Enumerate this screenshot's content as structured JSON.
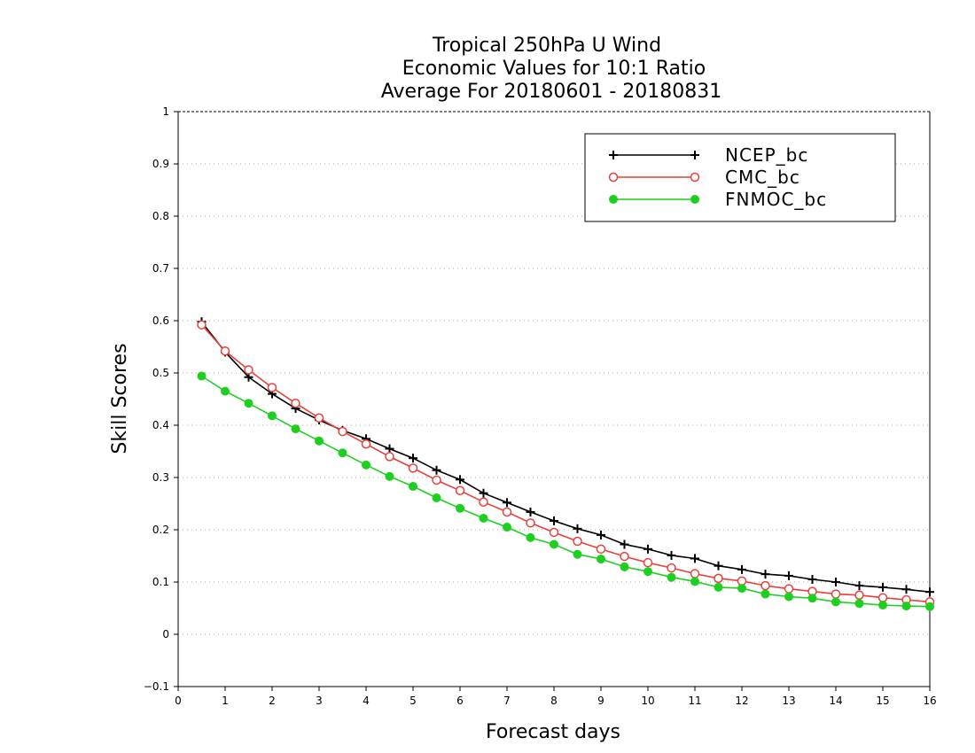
{
  "chart_data": {
    "type": "line",
    "title_lines": [
      "Tropical 250hPa U Wind",
      "Economic Values for 10:1 Ratio",
      "Average For 20180601 - 20180831"
    ],
    "xlabel": "Forecast days",
    "ylabel": "Skill Scores",
    "xlim": [
      0,
      16
    ],
    "ylim": [
      -0.1,
      1
    ],
    "x_ticks": [
      0,
      1,
      2,
      3,
      4,
      5,
      6,
      7,
      8,
      9,
      10,
      11,
      12,
      13,
      14,
      15,
      16
    ],
    "x_tick_labels": [
      "0",
      "1",
      "2",
      "3",
      "4",
      "5",
      "6",
      "7",
      "8",
      "9",
      "10",
      "11",
      "12",
      "13",
      "14",
      "15",
      "16"
    ],
    "y_ticks": [
      -0.1,
      0,
      0.1,
      0.2,
      0.3,
      0.4,
      0.5,
      0.6,
      0.7,
      0.8,
      0.9,
      1
    ],
    "y_tick_labels": [
      "−0.1",
      "0",
      "0.1",
      "0.2",
      "0.3",
      "0.4",
      "0.5",
      "0.6",
      "0.7",
      "0.8",
      "0.9",
      "1"
    ],
    "grid": true,
    "legend_position": "top-right",
    "x": [
      0.5,
      1,
      1.5,
      2,
      2.5,
      3,
      3.5,
      4,
      4.5,
      5,
      5.5,
      6,
      6.5,
      7,
      7.5,
      8,
      8.5,
      9,
      9.5,
      10,
      10.5,
      11,
      11.5,
      12,
      12.5,
      13,
      13.5,
      14,
      14.5,
      15,
      15.5,
      16
    ],
    "series": [
      {
        "name": "NCEP_bc",
        "color": "#000000",
        "marker": "plus",
        "values": [
          0.598,
          0.54,
          0.492,
          0.46,
          0.432,
          0.41,
          0.39,
          0.374,
          0.355,
          0.337,
          0.314,
          0.296,
          0.27,
          0.252,
          0.234,
          0.217,
          0.202,
          0.19,
          0.172,
          0.163,
          0.151,
          0.145,
          0.131,
          0.124,
          0.115,
          0.112,
          0.105,
          0.1,
          0.093,
          0.09,
          0.086,
          0.081
        ]
      },
      {
        "name": "CMC_bc",
        "color": "#e8413c",
        "marker": "open-circle",
        "values": [
          0.592,
          0.542,
          0.506,
          0.472,
          0.442,
          0.414,
          0.388,
          0.364,
          0.34,
          0.318,
          0.295,
          0.275,
          0.253,
          0.234,
          0.213,
          0.195,
          0.178,
          0.163,
          0.149,
          0.137,
          0.127,
          0.116,
          0.107,
          0.102,
          0.093,
          0.087,
          0.082,
          0.077,
          0.075,
          0.07,
          0.066,
          0.062
        ]
      },
      {
        "name": "FNMOC_bc",
        "color": "#1fcf1f",
        "marker": "filled-circle",
        "values": [
          0.494,
          0.465,
          0.442,
          0.418,
          0.393,
          0.37,
          0.347,
          0.324,
          0.302,
          0.283,
          0.261,
          0.241,
          0.222,
          0.205,
          0.185,
          0.172,
          0.153,
          0.144,
          0.129,
          0.12,
          0.109,
          0.101,
          0.09,
          0.088,
          0.077,
          0.072,
          0.069,
          0.062,
          0.059,
          0.056,
          0.054,
          0.053
        ]
      }
    ]
  }
}
